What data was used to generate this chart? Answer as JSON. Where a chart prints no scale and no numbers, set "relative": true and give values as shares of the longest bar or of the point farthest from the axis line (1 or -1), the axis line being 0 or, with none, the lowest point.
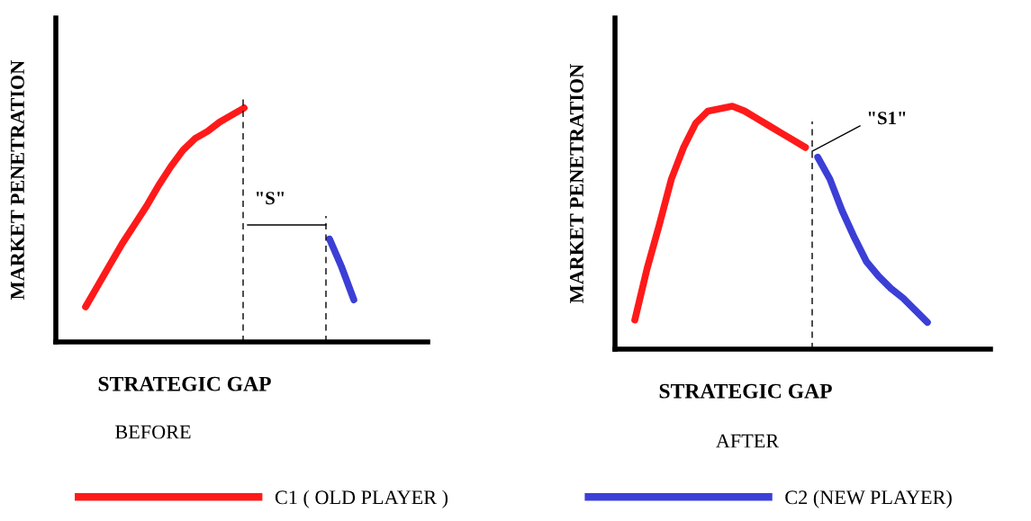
{
  "chart_data": [
    {
      "type": "line",
      "relative": true,
      "xlabel": "STRATEGIC GAP",
      "ylabel": "MARKET PENETRATION",
      "legend": "bottom",
      "marker": "none",
      "line_style": "solid",
      "categories": [
        null,
        null,
        null,
        null,
        null,
        null,
        null,
        null,
        null,
        null,
        null,
        null,
        null,
        null,
        null,
        null,
        null,
        null,
        null,
        null,
        null,
        null,
        null
      ],
      "series": [
        {
          "name": "C1 ( OLD PLAYER )",
          "color": "#ff1a1a",
          "values": [
            0.15,
            0.24,
            0.33,
            0.42,
            0.5,
            0.58,
            0.67,
            0.75,
            0.82,
            0.87,
            0.9,
            0.94,
            0.97,
            1.0,
            null,
            null,
            null,
            null,
            null,
            null,
            null,
            null,
            null
          ]
        },
        {
          "name": "C2 (NEW PLAYER)",
          "color": "#3b3fd6",
          "values": [
            null,
            null,
            null,
            null,
            null,
            null,
            null,
            null,
            null,
            null,
            null,
            null,
            null,
            null,
            null,
            null,
            null,
            null,
            null,
            null,
            0.44,
            0.32,
            0.18
          ]
        }
      ],
      "annotations": [
        "\"S\"",
        "BEFORE"
      ]
    },
    {
      "type": "line",
      "relative": true,
      "xlabel": "STRATEGIC GAP",
      "ylabel": "MARKET PENETRATION",
      "marker": "none",
      "line_style": "solid",
      "categories": [
        null,
        null,
        null,
        null,
        null,
        null,
        null,
        null,
        null,
        null,
        null,
        null,
        null,
        null,
        null,
        null,
        null,
        null,
        null,
        null,
        null,
        null,
        null,
        null,
        null
      ],
      "series": [
        {
          "color": "#ff1a1a",
          "values": [
            0.12,
            0.33,
            0.51,
            0.7,
            0.83,
            0.93,
            0.98,
            0.99,
            1.0,
            0.98,
            0.95,
            0.92,
            0.89,
            0.86,
            0.83,
            null,
            null,
            null,
            null,
            null,
            null,
            null,
            null,
            null,
            null
          ]
        },
        {
          "color": "#3b3fd6",
          "values": [
            null,
            null,
            null,
            null,
            null,
            null,
            null,
            null,
            null,
            null,
            null,
            null,
            null,
            null,
            null,
            0.79,
            0.7,
            0.57,
            0.46,
            0.36,
            0.3,
            0.25,
            0.21,
            0.16,
            0.11
          ]
        }
      ],
      "annotations": [
        "\"S1\"",
        "AFTER"
      ]
    }
  ]
}
